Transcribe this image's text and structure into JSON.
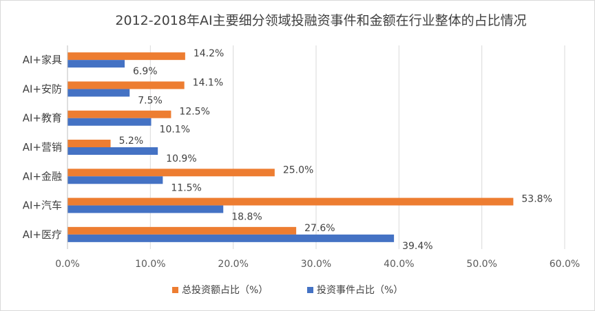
{
  "chart_data": {
    "type": "bar",
    "orientation": "horizontal",
    "title": "2012-2018年AI主要细分领域投融资事件和金额在行业整体的占比情况",
    "categories": [
      "AI+家具",
      "AI+安防",
      "AI+教育",
      "AI+营销",
      "AI+金融",
      "AI+汽车",
      "AI+医疗"
    ],
    "series": [
      {
        "name": "总投资额占比（%）",
        "color": "#ED7D31",
        "values": [
          14.2,
          14.1,
          12.5,
          5.2,
          25.0,
          53.8,
          27.6
        ],
        "labels": [
          "14.2%",
          "14.1%",
          "12.5%",
          "5.2%",
          "25.0%",
          "53.8%",
          "27.6%"
        ]
      },
      {
        "name": "投资事件占比（%）",
        "color": "#4472C4",
        "values": [
          6.9,
          7.5,
          10.1,
          10.9,
          11.5,
          18.8,
          39.4
        ],
        "labels": [
          "6.9%",
          "7.5%",
          "10.1%",
          "10.9%",
          "11.5%",
          "18.8%",
          "39.4%"
        ]
      }
    ],
    "xlim": [
      0,
      60
    ],
    "xticks": [
      "0.0%",
      "10.0%",
      "20.0%",
      "30.0%",
      "40.0%",
      "50.0%",
      "60.0%"
    ],
    "xlabel": "",
    "ylabel": "",
    "grid": true,
    "legend_position": "bottom"
  }
}
